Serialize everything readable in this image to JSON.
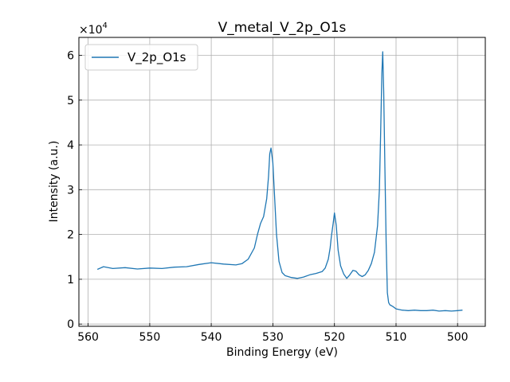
{
  "chart_data": {
    "type": "line",
    "title": "V_metal_V_2p_O1s",
    "xlabel": "Binding Energy (eV)",
    "ylabel": "Intensity (a.u.)",
    "x_inverted": true,
    "xlim": [
      561.5,
      495.5
    ],
    "ylim": [
      -500,
      64000
    ],
    "xticks": [
      560,
      550,
      540,
      530,
      520,
      510,
      500
    ],
    "xtick_labels": [
      "560",
      "550",
      "540",
      "530",
      "520",
      "510",
      "500"
    ],
    "yticks": [
      0,
      10000,
      20000,
      30000,
      40000,
      50000,
      60000
    ],
    "ytick_labels": [
      "0",
      "1",
      "2",
      "3",
      "4",
      "5",
      "6"
    ],
    "y_multiplier_base": "×10",
    "y_multiplier_exp": "4",
    "grid": true,
    "legend_position": "top-left",
    "series": [
      {
        "name": "V_2p_O1s",
        "color": "#1f77b4",
        "points": [
          [
            558.5,
            12200
          ],
          [
            557.5,
            12800
          ],
          [
            556,
            12400
          ],
          [
            554,
            12600
          ],
          [
            552,
            12300
          ],
          [
            550,
            12500
          ],
          [
            548,
            12400
          ],
          [
            546,
            12700
          ],
          [
            544,
            12800
          ],
          [
            542,
            13300
          ],
          [
            540,
            13700
          ],
          [
            538,
            13400
          ],
          [
            536,
            13200
          ],
          [
            535,
            13500
          ],
          [
            534,
            14500
          ],
          [
            533,
            17000
          ],
          [
            532.5,
            20000
          ],
          [
            532,
            22500
          ],
          [
            531.5,
            24000
          ],
          [
            531,
            28000
          ],
          [
            530.7,
            33000
          ],
          [
            530.5,
            38000
          ],
          [
            530.3,
            39300
          ],
          [
            530,
            36000
          ],
          [
            529.7,
            28000
          ],
          [
            529.4,
            20000
          ],
          [
            529,
            14000
          ],
          [
            528.5,
            11500
          ],
          [
            528,
            10800
          ],
          [
            527,
            10400
          ],
          [
            526,
            10200
          ],
          [
            525,
            10500
          ],
          [
            524,
            11000
          ],
          [
            523,
            11300
          ],
          [
            522,
            11700
          ],
          [
            521.5,
            12500
          ],
          [
            521,
            14500
          ],
          [
            520.7,
            17000
          ],
          [
            520.5,
            19500
          ],
          [
            520.2,
            22500
          ],
          [
            520,
            24800
          ],
          [
            519.7,
            22000
          ],
          [
            519.4,
            16500
          ],
          [
            519,
            13000
          ],
          [
            518.5,
            11200
          ],
          [
            518,
            10200
          ],
          [
            517.5,
            11000
          ],
          [
            517,
            12000
          ],
          [
            516.5,
            11800
          ],
          [
            516,
            11000
          ],
          [
            515.5,
            10600
          ],
          [
            515,
            11000
          ],
          [
            514.5,
            12000
          ],
          [
            514,
            13500
          ],
          [
            513.5,
            16000
          ],
          [
            513,
            22000
          ],
          [
            512.7,
            30000
          ],
          [
            512.5,
            42000
          ],
          [
            512.3,
            56000
          ],
          [
            512.15,
            60800
          ],
          [
            512,
            52000
          ],
          [
            511.8,
            35000
          ],
          [
            511.6,
            18000
          ],
          [
            511.4,
            7000
          ],
          [
            511.2,
            4800
          ],
          [
            511,
            4300
          ],
          [
            510.5,
            3900
          ],
          [
            510,
            3400
          ],
          [
            509,
            3100
          ],
          [
            508,
            3000
          ],
          [
            507,
            3100
          ],
          [
            506,
            3000
          ],
          [
            505,
            3000
          ],
          [
            504,
            3100
          ],
          [
            503,
            2900
          ],
          [
            502,
            3000
          ],
          [
            501,
            2900
          ],
          [
            500,
            3000
          ],
          [
            499.2,
            3100
          ]
        ]
      }
    ]
  }
}
